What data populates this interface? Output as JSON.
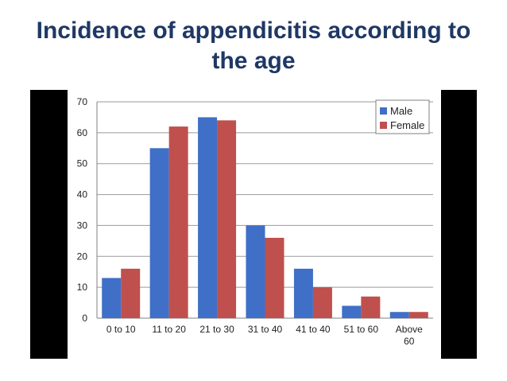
{
  "slide": {
    "title_line1": "Incidence of appendicitis according to",
    "title_line2": "the age"
  },
  "chart_data": {
    "type": "bar",
    "title": "Incidence of appendicitis according to the age",
    "xlabel": "",
    "ylabel": "",
    "ylim": [
      0,
      70
    ],
    "yticks": [
      0,
      10,
      20,
      30,
      40,
      50,
      60,
      70
    ],
    "grid": true,
    "legend": "top-right",
    "categories": [
      "0 to 10",
      "11 to 20",
      "21 to 30",
      "31 to 40",
      "41 to 40",
      "51 to 60",
      "Above 60"
    ],
    "category_lines": [
      [
        "0 to 10"
      ],
      [
        "11 to 20"
      ],
      [
        "21 to 30"
      ],
      [
        "31 to 40"
      ],
      [
        "41 to 40"
      ],
      [
        "51 to 60"
      ],
      [
        "Above",
        "60"
      ]
    ],
    "series": [
      {
        "name": "Male",
        "color": "#3f6fc6",
        "values": [
          13,
          55,
          65,
          30,
          16,
          4,
          2
        ]
      },
      {
        "name": "Female",
        "color": "#c0504d",
        "values": [
          16,
          62,
          64,
          26,
          10,
          7,
          2
        ]
      }
    ]
  }
}
